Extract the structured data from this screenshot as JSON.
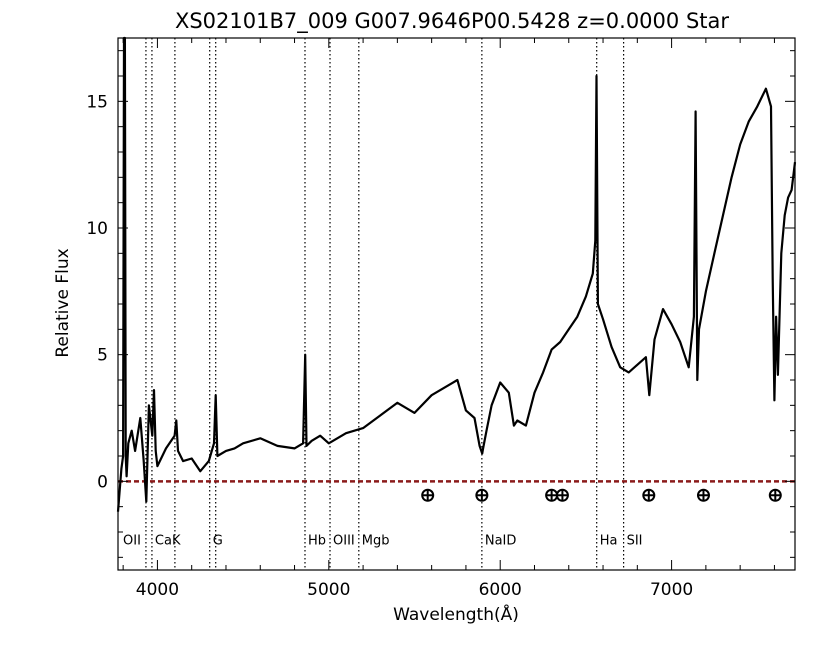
{
  "chart_data": {
    "type": "line",
    "title": "XS02101B7_009  G007.9646P00.5428  z=0.0000   Star",
    "xlabel": "Wavelength(Å)",
    "ylabel": "Relative Flux",
    "xlim": [
      3770,
      7720
    ],
    "ylim": [
      -3.5,
      17.5
    ],
    "x_ticks": [
      4000,
      5000,
      6000,
      7000
    ],
    "y_ticks": [
      0,
      5,
      10,
      15
    ],
    "grid": false,
    "series": [
      {
        "color": "#000000",
        "x": [
          3770,
          3790,
          3800,
          3805,
          3810,
          3815,
          3820,
          3830,
          3850,
          3870,
          3900,
          3920,
          3935,
          3950,
          3970,
          3980,
          3990,
          4000,
          4050,
          4100,
          4110,
          4120,
          4150,
          4200,
          4250,
          4300,
          4330,
          4340,
          4350,
          4400,
          4450,
          4500,
          4600,
          4700,
          4800,
          4850,
          4862,
          4870,
          4900,
          4950,
          5000,
          5100,
          5200,
          5300,
          5400,
          5500,
          5600,
          5700,
          5750,
          5800,
          5850,
          5880,
          5895,
          5900,
          5920,
          5950,
          6000,
          6050,
          6080,
          6100,
          6150,
          6200,
          6250,
          6300,
          6350,
          6400,
          6450,
          6500,
          6540,
          6555,
          6562,
          6570,
          6600,
          6650,
          6700,
          6750,
          6800,
          6850,
          6870,
          6900,
          6950,
          7000,
          7050,
          7100,
          7130,
          7140,
          7150,
          7160,
          7200,
          7250,
          7300,
          7350,
          7400,
          7450,
          7500,
          7550,
          7580,
          7590,
          7600,
          7610,
          7620,
          7640,
          7660,
          7680,
          7700,
          7720
        ],
        "values": [
          -1.2,
          0.5,
          1.0,
          17.5,
          17.5,
          1.0,
          0.2,
          1.5,
          2.0,
          1.2,
          2.5,
          0.8,
          -0.8,
          3.0,
          1.8,
          3.6,
          1.2,
          0.6,
          1.3,
          1.8,
          2.4,
          1.2,
          0.8,
          0.9,
          0.4,
          0.8,
          1.5,
          3.4,
          1.0,
          1.2,
          1.3,
          1.5,
          1.7,
          1.4,
          1.3,
          1.5,
          5.0,
          1.4,
          1.6,
          1.8,
          1.5,
          1.9,
          2.1,
          2.6,
          3.1,
          2.7,
          3.4,
          3.8,
          4.0,
          2.8,
          2.5,
          1.4,
          1.1,
          1.3,
          2.0,
          3.0,
          3.9,
          3.5,
          2.2,
          2.4,
          2.2,
          3.5,
          4.3,
          5.2,
          5.5,
          6.0,
          6.5,
          7.3,
          8.2,
          9.5,
          16.0,
          7.0,
          6.4,
          5.3,
          4.5,
          4.3,
          4.6,
          4.9,
          3.4,
          5.6,
          6.8,
          6.2,
          5.5,
          4.5,
          6.5,
          14.6,
          4.0,
          6.0,
          7.5,
          9.0,
          10.5,
          12.0,
          13.3,
          14.2,
          14.8,
          15.5,
          14.8,
          8.0,
          3.2,
          6.5,
          4.2,
          9.0,
          10.5,
          11.2,
          11.5,
          12.6
        ]
      }
    ],
    "zero_line": {
      "y": 0,
      "color": "#8b1a1a",
      "style": "dashed"
    },
    "spectral_lines": [
      {
        "label": "OII",
        "x": 3727
      },
      {
        "label": "",
        "x": 3933
      },
      {
        "label": "CaK",
        "x": 3968
      },
      {
        "label": "",
        "x": 4102
      },
      {
        "label": "G",
        "x": 4305
      },
      {
        "label": "",
        "x": 4340
      },
      {
        "label": "Hb",
        "x": 4861
      },
      {
        "label": "OIII",
        "x": 5007
      },
      {
        "label": "Mgb",
        "x": 5175
      },
      {
        "label": "NaID",
        "x": 5893
      },
      {
        "label": "Ha",
        "x": 6563
      },
      {
        "label": "SII",
        "x": 6720
      }
    ],
    "telluric_markers": [
      5577,
      5893,
      6300,
      6363,
      6867,
      7186,
      7605
    ],
    "telluric_marker_y": -0.55,
    "label_y": -2.3
  }
}
